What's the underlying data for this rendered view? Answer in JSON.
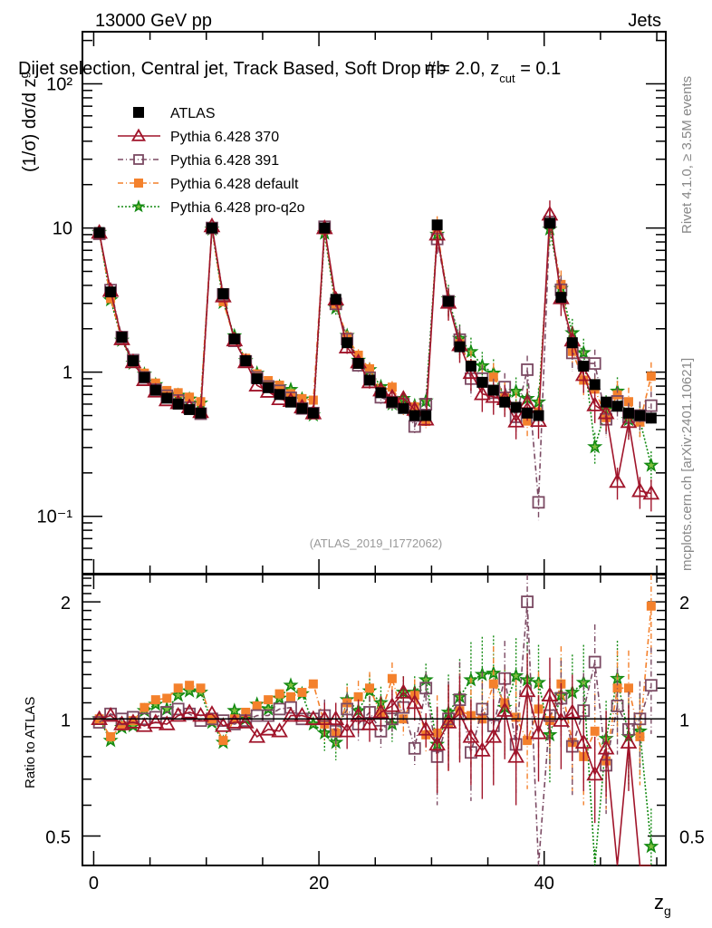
{
  "chart_data": {
    "type": "line",
    "header_left": "13000 GeV pp",
    "header_right": "Jets",
    "title": "Dijet selection, Central jet, Track Based, Soft Drop #b",
    "title_suffix": "η = 2.0, z",
    "title_sub": "cut",
    "title_end": " = 0.1",
    "ylabel_upper": "(1/σ) dσ/d z",
    "ylabel_upper_sub": "g",
    "ylabel_lower": "Ratio to ATLAS",
    "xlabel": "z",
    "xlabel_sub": "g",
    "analysis_id": "(ATLAS_2019_I1772062)",
    "side_text_1": "Rivet 4.1.0, ≥ 3.5M events",
    "side_text_2": "mcplots.cern.ch [arXiv:2401.10621]",
    "x_range": [
      -1,
      50.8
    ],
    "x_ticks": [
      {
        "v": 0,
        "label": "0"
      },
      {
        "v": 20,
        "label": "20"
      },
      {
        "v": 40,
        "label": "40"
      }
    ],
    "upper_y_scale": "log",
    "upper_y_range": [
      0.04,
      230
    ],
    "upper_y_ticks": [
      {
        "v": 0.1,
        "label": "10⁻¹"
      },
      {
        "v": 1,
        "label": "1"
      },
      {
        "v": 10,
        "label": "10"
      },
      {
        "v": 100,
        "label": "10²"
      }
    ],
    "lower_y_scale": "log",
    "lower_y_range": [
      0.42,
      2.35
    ],
    "lower_y_ticks": [
      {
        "v": 0.5,
        "label": "0.5"
      },
      {
        "v": 1,
        "label": "1"
      },
      {
        "v": 2,
        "label": "2"
      }
    ],
    "legend_position": "top-left",
    "x": [
      0.5,
      1.5,
      2.5,
      3.5,
      4.5,
      5.5,
      6.5,
      7.5,
      8.5,
      9.5,
      10.5,
      11.5,
      12.5,
      13.5,
      14.5,
      15.5,
      16.5,
      17.5,
      18.5,
      19.5,
      20.5,
      21.5,
      22.5,
      23.5,
      24.5,
      25.5,
      26.5,
      27.5,
      28.5,
      29.5,
      30.5,
      31.5,
      32.5,
      33.5,
      34.5,
      35.5,
      36.5,
      37.5,
      38.5,
      39.5,
      40.5,
      41.5,
      42.5,
      43.5,
      44.5,
      45.5,
      46.5,
      47.5,
      48.5,
      49.5
    ],
    "series": [
      {
        "name": "ATLAS",
        "color": "#000000",
        "marker": "filled-square",
        "line": "none",
        "values": [
          9.3,
          3.6,
          1.75,
          1.2,
          0.92,
          0.75,
          0.66,
          0.6,
          0.55,
          0.52,
          10.0,
          3.5,
          1.7,
          1.2,
          0.9,
          0.78,
          0.7,
          0.62,
          0.56,
          0.52,
          10.0,
          3.2,
          1.6,
          1.15,
          0.88,
          0.72,
          0.62,
          0.56,
          0.5,
          0.5,
          10.5,
          3.1,
          1.5,
          1.1,
          0.85,
          0.75,
          0.62,
          0.57,
          0.52,
          0.5,
          10.8,
          3.3,
          1.6,
          1.1,
          0.82,
          0.62,
          0.58,
          0.52,
          0.5,
          0.48
        ]
      },
      {
        "name": "Pythia 6.428 370",
        "color": "#a0142a",
        "marker": "open-triangle",
        "line": "solid",
        "ratio": [
          1.0,
          1.02,
          0.97,
          0.98,
          0.96,
          0.98,
          0.97,
          1.02,
          1.04,
          1.02,
          1.03,
          0.96,
          0.98,
          0.98,
          0.9,
          0.94,
          0.93,
          1.02,
          1.02,
          1.0,
          1.0,
          1.0,
          0.93,
          1.02,
          0.97,
          1.04,
          1.08,
          1.17,
          1.1,
          0.94,
          0.86,
          0.98,
          1.03,
          0.9,
          0.83,
          0.9,
          1.05,
          0.8,
          1.18,
          0.92,
          1.15,
          0.99,
          1.04,
          0.87,
          0.72,
          0.84,
          0.3,
          0.87,
          0.3,
          0.3
        ]
      },
      {
        "name": "Pythia 6.428 391",
        "color": "#7b4a63",
        "marker": "open-square",
        "line": "dash-dot",
        "ratio": [
          0.98,
          1.03,
          1.0,
          1.01,
          1.0,
          1.01,
          1.04,
          1.06,
          1.03,
          0.99,
          1.0,
          0.99,
          0.97,
          0.99,
          1.02,
          1.02,
          1.06,
          1.07,
          1.0,
          1.0,
          1.02,
          0.93,
          1.06,
          0.97,
          1.04,
          0.93,
          1.0,
          1.07,
          0.84,
          1.2,
          0.8,
          1.0,
          1.12,
          0.82,
          1.06,
          0.96,
          1.27,
          0.86,
          2.0,
          0.25,
          1.02,
          1.13,
          0.85,
          1.05,
          1.4,
          0.76,
          1.08,
          0.94,
          1.0,
          1.22
        ]
      },
      {
        "name": "Pythia 6.428 default",
        "color": "#f4812c",
        "marker": "filled-square",
        "line": "dash-dot",
        "ratio": [
          1.0,
          0.9,
          0.96,
          0.99,
          1.07,
          1.12,
          1.13,
          1.2,
          1.22,
          1.2,
          1.0,
          0.88,
          1.0,
          1.04,
          1.08,
          1.12,
          1.16,
          1.14,
          1.17,
          1.23,
          0.97,
          0.92,
          1.1,
          1.14,
          1.2,
          1.03,
          1.27,
          1.0,
          1.15,
          0.91,
          0.92,
          0.98,
          1.05,
          1.02,
          1.0,
          1.23,
          1.1,
          1.01,
          0.88,
          1.06,
          0.99,
          1.23,
          0.87,
          0.8,
          0.93,
          0.78,
          1.2,
          1.2,
          0.9,
          1.95
        ]
      },
      {
        "name": "Pythia 6.428 pro-q2o",
        "color": "#138a12",
        "marker": "star",
        "line": "dotted",
        "ratio": [
          1.0,
          0.88,
          0.95,
          0.96,
          1.05,
          1.09,
          1.06,
          1.15,
          1.18,
          1.17,
          0.98,
          0.87,
          1.05,
          1.0,
          1.09,
          1.06,
          1.13,
          1.22,
          1.16,
          0.97,
          0.92,
          0.87,
          1.12,
          1.05,
          1.18,
          1.1,
          0.97,
          1.17,
          1.17,
          1.26,
          0.86,
          1.04,
          1.14,
          1.26,
          1.3,
          1.31,
          1.07,
          1.29,
          1.26,
          1.24,
          0.91,
          1.15,
          1.17,
          1.24,
          0.37,
          0.89,
          1.27,
          0.9,
          0.93,
          0.47
        ]
      }
    ]
  }
}
